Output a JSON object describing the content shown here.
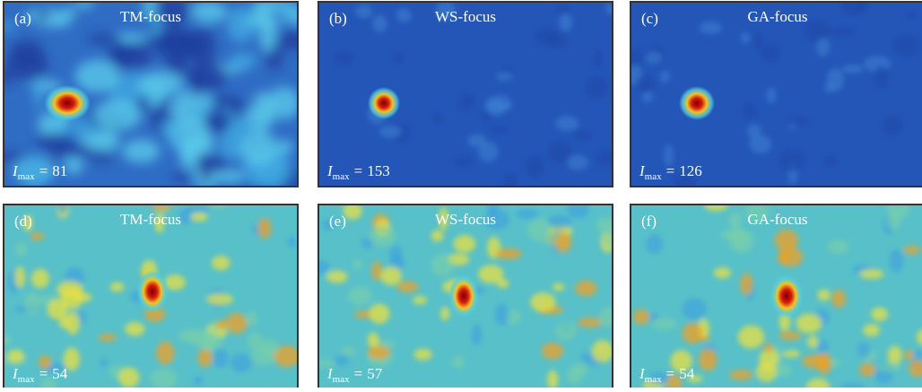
{
  "panels": [
    {
      "label": "(a)",
      "title": "TM-focus",
      "intensity": {
        "symbol": "I",
        "subscript": "max",
        "relation": "=",
        "value": 81
      }
    },
    {
      "label": "(b)",
      "title": "WS-focus",
      "intensity": {
        "symbol": "I",
        "subscript": "max",
        "relation": "=",
        "value": 153
      }
    },
    {
      "label": "(c)",
      "title": "GA-focus",
      "intensity": {
        "symbol": "I",
        "subscript": "max",
        "relation": "=",
        "value": 126
      }
    },
    {
      "label": "(d)",
      "title": "TM-focus",
      "intensity": {
        "symbol": "I",
        "subscript": "max",
        "relation": "=",
        "value": 54
      }
    },
    {
      "label": "(e)",
      "title": "WS-focus",
      "intensity": {
        "symbol": "I",
        "subscript": "max",
        "relation": "=",
        "value": 57
      }
    },
    {
      "label": "(f)",
      "title": "GA-focus",
      "intensity": {
        "symbol": "I",
        "subscript": "max",
        "relation": "=",
        "value": 54
      }
    }
  ]
}
